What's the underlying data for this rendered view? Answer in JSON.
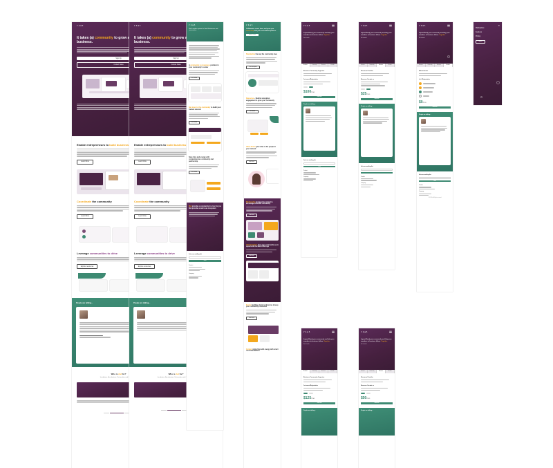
{
  "brand": {
    "logo": "rial",
    "accent": "#f4a81d",
    "purple": "#4a2345",
    "green": "#3d8a72"
  },
  "home": {
    "hero_title_a": "It takes (a) ",
    "hero_title_hl": "community",
    "hero_title_b": " to grow a business.",
    "cta_primary": "Sign Up",
    "cta_secondary": "Contact Sales",
    "section1_title_a": "Enable entrepreneurs to ",
    "section1_title_hl": "build businesses",
    "section2_title_hl": "Coordinate",
    "section2_title_b": " the community",
    "section3_title_a": "Leverage ",
    "section3_title_hl": "communities to drive",
    "testimonial_heading": "People are talking...",
    "stats_title_a": "Who is ",
    "stats_title_hl": "rial",
    "stats_title_b": " for?",
    "stats_sub": "Incubators, Accelerators, Universities and Corporations",
    "button_learn": "Learn More",
    "button_see": "See how it works",
    "button_explore": "Explore resources"
  },
  "features": {
    "lead": "Rial’s modern system for Small Businesses and communities",
    "b1_title_a": "A ",
    "b1_title_hl": "community is a business",
    "b1_title_b": " problem in your community’s center",
    "b2_title_hl": "Say more to the community",
    "b2_title_b": " to build your trusted network",
    "b3_title": "Save time and energy with comprehensive community and partnership",
    "footer_title_a": "Rial",
    "footer_title_b": " provides a community in a box for you that provides scale to an ecosystem",
    "button_text": "Get Started"
  },
  "features2": {
    "hero_title_a": "Collaborate, create, learn, and grow your ",
    "hero_title_hl": "community",
    "hero_title_b": " with your consolidated platform",
    "s1_hl": "Standardize",
    "s1_b": " the way the community does",
    "s2_hl": "Resources",
    "s2_b": " - Build & strengthen engagement to grow your community",
    "s3_hl": "Value-driven",
    "s3_b": " give value to the people in your network",
    "s4_hl": "Membership",
    "s4_b": " manage the content to encourage cohesive community",
    "s5_hl": "Administrators",
    "s5_b": " keep your community up to speed with the latest offerings",
    "s6_hl": "Events",
    "s6_b": " facilitate client conferences & keep your community connected",
    "s7_hl": "Content",
    "s7_b": " rating flow with energy with smart recommendations",
    "button_demo": "Book a Demo",
    "button_visit": "Visit Marketplace",
    "button_get": "Get Started",
    "button_view": "View Events",
    "button_learn": "Learn More"
  },
  "pricing": {
    "hero_title": "Impact-Ready your community and help your members to business failure.",
    "hero_hl": "Together.",
    "hero_sub": "Get in touch",
    "tabs": [
      "Business",
      "Community",
      "Resource",
      "Provider"
    ],
    "plan1_title": "Business Community Organizer",
    "plan1_sub": "1st annual Registration",
    "plan1_price": "$100",
    "plan2_title": "Resource Provider",
    "plan2_sub": "Resource Contact us",
    "plan2_price": "$25",
    "plan3_title": "Administrator",
    "plan3_sub": "Let's Registration",
    "plan3_price": "$0",
    "plan1_price_b": "$125",
    "plan2_price_b": "$50",
    "per": "/mo",
    "cta": "Subscribe",
    "quote_heading": "People are talking...",
    "join_heading": "Join our mailing list",
    "join_button": "Send",
    "footer_col1": "Product",
    "footer_col2": "Company",
    "footer_col3": "Resources",
    "footer_links": [
      "Features",
      "Pricing",
      "Blog",
      "About",
      "Careers",
      "Contact"
    ],
    "copyright": "© 2021 Rial. All rights reserved."
  },
  "menu": {
    "items": [
      "Marketplace",
      "Features",
      "Pricing"
    ],
    "button": "Sign In"
  }
}
